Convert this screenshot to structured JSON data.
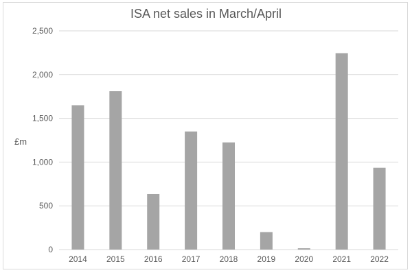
{
  "chart_data": {
    "type": "bar",
    "title": "ISA net sales in March/April",
    "xlabel": "",
    "ylabel": "£m",
    "categories": [
      "2014",
      "2015",
      "2016",
      "2017",
      "2018",
      "2019",
      "2020",
      "2021",
      "2022"
    ],
    "values": [
      1650,
      1810,
      635,
      1350,
      1225,
      200,
      15,
      2245,
      935
    ],
    "ylim": [
      0,
      2500
    ],
    "yticks": [
      0,
      500,
      1000,
      1500,
      2000,
      2500
    ],
    "ytick_labels": [
      "0",
      "500",
      "1,000",
      "1,500",
      "2,000",
      "2,500"
    ],
    "grid": true,
    "legend": "none",
    "colors": {
      "bar": "#a5a5a5",
      "grid": "#d9d9d9",
      "axis": "#d9d9d9",
      "text": "#595959"
    }
  }
}
